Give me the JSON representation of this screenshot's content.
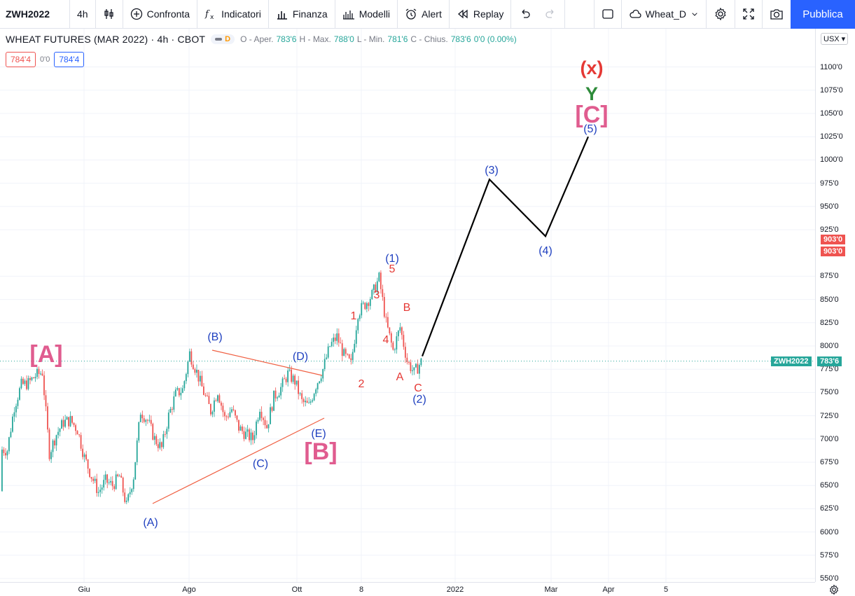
{
  "toolbar": {
    "symbol": "ZWH2022",
    "interval": "4h",
    "compare": "Confronta",
    "indicators": "Indicatori",
    "financials": "Finanza",
    "templates": "Modelli",
    "alert": "Alert",
    "replay": "Replay",
    "layout_name": "Wheat_D",
    "publish": "Pubblica"
  },
  "legend": {
    "title": "WHEAT FUTURES (MAR 2022) · 4h · CBOT",
    "badge_letter": "D",
    "open_label": "O - Aper.",
    "open": "783'6",
    "high_label": "H - Max.",
    "high": "788'0",
    "low_label": "L - Min.",
    "low": "781'6",
    "close_label": "C - Chius.",
    "close": "783'6",
    "change": "0'0 (0.00%)"
  },
  "trade": {
    "sell": "784'4",
    "spread": "0'0",
    "buy": "784'4"
  },
  "axis": {
    "currency": "USX",
    "y_ticks": [
      "1100'0",
      "1075'0",
      "1050'0",
      "1025'0",
      "1000'0",
      "975'0",
      "950'0",
      "925'0",
      "875'0",
      "850'0",
      "825'0",
      "800'0",
      "775'0",
      "750'0",
      "725'0",
      "700'0",
      "675'0",
      "650'0",
      "625'0",
      "600'0",
      "575'0",
      "550'0"
    ],
    "y_values": [
      1100,
      1075,
      1050,
      1025,
      1000,
      975,
      950,
      925,
      875,
      850,
      825,
      800,
      775,
      750,
      725,
      700,
      675,
      650,
      625,
      600,
      575,
      550
    ],
    "x_ticks": [
      "Giu",
      "Ago",
      "Ott",
      "8",
      "2022",
      "Mar",
      "Apr",
      "5"
    ],
    "price_label_1": "903'0",
    "price_label_2": "903'0",
    "last_symbol": "ZWH2022",
    "last_price": "783'6",
    "last_value": 783.75
  },
  "colors": {
    "up": "#26a69a",
    "down": "#ef5350",
    "wave_blue": "#1e3fbf",
    "wave_red": "#e53935",
    "wave_pink": "#e05c8f",
    "wave_green": "#2e8b3a",
    "trend_line": "#f06043",
    "accent": "#2962ff"
  },
  "waves": {
    "A_big": "[A]",
    "B_big": "[B]",
    "C_big": "[C]",
    "x_label": "(x)",
    "Y_label": "Y",
    "wA": "(A)",
    "wB": "(B)",
    "wC": "(C)",
    "wD": "(D)",
    "wE": "(E)",
    "w1p": "(1)",
    "w2p": "(2)",
    "w3p": "(3)",
    "w4p": "(4)",
    "w5p": "(5)",
    "s1": "1",
    "s2": "2",
    "s3": "3",
    "s4": "4",
    "s5": "5",
    "sA": "A",
    "sB": "B",
    "sC": "C"
  },
  "projection": [
    {
      "t": "end-Nov",
      "price": 789
    },
    {
      "t": "mid-Jan",
      "price": 979
    },
    {
      "t": "late-Feb",
      "price": 918
    },
    {
      "t": "late-Mar",
      "price": 1025
    }
  ],
  "price_path": [
    [
      644,
      689
    ],
    [
      660,
      688
    ],
    [
      700,
      735
    ],
    [
      742,
      758
    ],
    [
      720,
      760
    ],
    [
      690,
      768
    ],
    [
      720,
      772
    ],
    [
      675,
      685
    ],
    [
      705,
      705
    ],
    [
      680,
      718
    ],
    [
      715,
      720
    ],
    [
      690,
      710
    ],
    [
      660,
      680
    ],
    [
      690,
      660
    ],
    [
      670,
      643
    ],
    [
      645,
      655
    ],
    [
      662,
      650
    ],
    [
      635,
      660
    ],
    [
      630,
      628
    ],
    [
      655,
      660
    ],
    [
      700,
      730
    ],
    [
      725,
      720
    ],
    [
      715,
      700
    ],
    [
      700,
      690
    ],
    [
      740,
      725
    ],
    [
      760,
      748
    ],
    [
      778,
      753
    ],
    [
      790,
      792
    ],
    [
      770,
      772
    ],
    [
      760,
      750
    ],
    [
      745,
      730
    ],
    [
      755,
      752
    ],
    [
      740,
      722
    ],
    [
      750,
      732
    ],
    [
      730,
      712
    ],
    [
      715,
      705
    ],
    [
      690,
      700
    ],
    [
      725,
      735
    ],
    [
      710,
      713
    ],
    [
      740,
      745
    ],
    [
      750,
      755
    ],
    [
      762,
      770
    ],
    [
      775,
      762
    ],
    [
      760,
      740
    ],
    [
      745,
      735
    ],
    [
      740,
      758
    ],
    [
      770,
      775
    ],
    [
      775,
      800
    ],
    [
      816,
      810
    ],
    [
      805,
      790
    ],
    [
      790,
      780
    ],
    [
      800,
      836
    ],
    [
      825,
      845
    ],
    [
      840,
      855
    ],
    [
      850,
      873
    ],
    [
      855,
      825
    ],
    [
      812,
      795
    ],
    [
      800,
      820
    ],
    [
      785,
      784
    ],
    [
      787,
      771
    ],
    [
      783,
      783
    ]
  ]
}
